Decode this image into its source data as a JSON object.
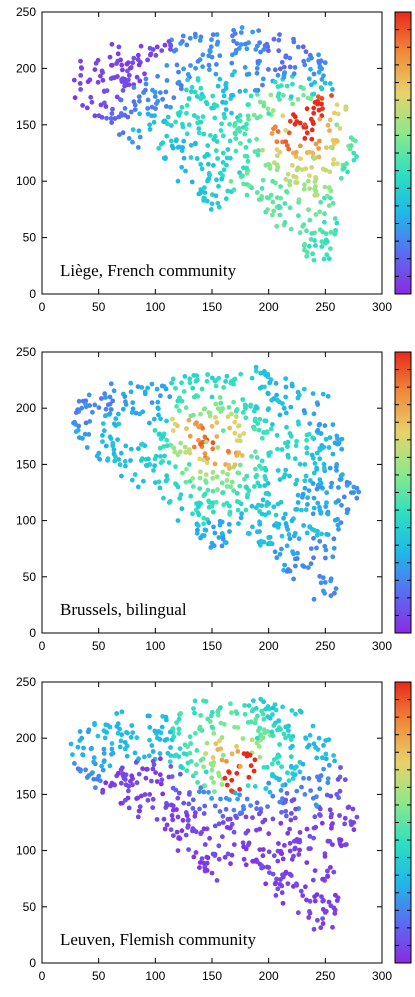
{
  "colors": {
    "colormap": [
      "#8a2be2",
      "#5b6cf2",
      "#1fb8e8",
      "#2ee0c0",
      "#8ee88a",
      "#e8d26a",
      "#f08a3a",
      "#e82a1a"
    ],
    "axis": "#000000",
    "background": "#ffffff"
  },
  "chart_data": [
    {
      "type": "scatter",
      "title": "Liège, French community",
      "xlim": [
        0,
        300
      ],
      "ylim": [
        0,
        250
      ],
      "x_ticks": [
        "0",
        "50",
        "100",
        "150",
        "200",
        "250",
        "300"
      ],
      "y_ticks": [
        "0",
        "50",
        "100",
        "150",
        "200",
        "250"
      ],
      "colorbar": true,
      "grid": false,
      "hotspot": [
        232,
        150
      ],
      "points": [
        [
          35,
          200,
          0.05
        ],
        [
          60,
          210,
          0.05
        ],
        [
          80,
          205,
          0.05
        ],
        [
          55,
          180,
          0.08
        ],
        [
          40,
          165,
          0.05
        ],
        [
          70,
          160,
          0.15
        ],
        [
          95,
          150,
          0.3
        ],
        [
          110,
          140,
          0.35
        ],
        [
          130,
          150,
          0.4
        ],
        [
          145,
          170,
          0.4
        ],
        [
          160,
          180,
          0.3
        ],
        [
          150,
          210,
          0.2
        ],
        [
          190,
          200,
          0.2
        ],
        [
          215,
          210,
          0.15
        ],
        [
          240,
          195,
          0.2
        ],
        [
          220,
          175,
          0.35
        ],
        [
          200,
          160,
          0.45
        ],
        [
          215,
          145,
          0.7
        ],
        [
          232,
          150,
          0.95
        ],
        [
          245,
          155,
          0.8
        ],
        [
          260,
          150,
          0.55
        ],
        [
          275,
          125,
          0.45
        ],
        [
          255,
          130,
          0.6
        ],
        [
          240,
          120,
          0.6
        ],
        [
          225,
          110,
          0.6
        ],
        [
          200,
          115,
          0.55
        ],
        [
          180,
          130,
          0.45
        ],
        [
          160,
          125,
          0.4
        ],
        [
          140,
          115,
          0.35
        ],
        [
          120,
          100,
          0.3
        ],
        [
          150,
          80,
          0.35
        ],
        [
          190,
          90,
          0.5
        ],
        [
          210,
          70,
          0.5
        ],
        [
          230,
          60,
          0.5
        ],
        [
          250,
          45,
          0.45
        ],
        [
          240,
          30,
          0.45
        ],
        [
          200,
          85,
          0.5
        ],
        [
          120,
          130,
          0.3
        ],
        [
          85,
          130,
          0.2
        ],
        [
          100,
          175,
          0.2
        ]
      ]
    },
    {
      "type": "scatter",
      "title": "Brussels, bilingual",
      "xlim": [
        0,
        300
      ],
      "ylim": [
        0,
        250
      ],
      "x_ticks": [
        "0",
        "50",
        "100",
        "150",
        "200",
        "250",
        "300"
      ],
      "y_ticks": [
        "0",
        "50",
        "100",
        "150",
        "200",
        "250"
      ],
      "colorbar": true,
      "grid": false,
      "hotspot": [
        150,
        170
      ],
      "points": [
        [
          35,
          200,
          0.2
        ],
        [
          60,
          210,
          0.2
        ],
        [
          80,
          205,
          0.25
        ],
        [
          55,
          180,
          0.3
        ],
        [
          40,
          165,
          0.25
        ],
        [
          70,
          160,
          0.3
        ],
        [
          95,
          150,
          0.35
        ],
        [
          110,
          140,
          0.35
        ],
        [
          130,
          150,
          0.45
        ],
        [
          145,
          170,
          0.6
        ],
        [
          155,
          165,
          0.6
        ],
        [
          160,
          180,
          0.5
        ],
        [
          150,
          210,
          0.4
        ],
        [
          190,
          200,
          0.35
        ],
        [
          215,
          210,
          0.3
        ],
        [
          240,
          195,
          0.25
        ],
        [
          220,
          175,
          0.4
        ],
        [
          200,
          160,
          0.4
        ],
        [
          215,
          145,
          0.35
        ],
        [
          232,
          150,
          0.35
        ],
        [
          245,
          155,
          0.3
        ],
        [
          260,
          150,
          0.25
        ],
        [
          275,
          125,
          0.2
        ],
        [
          255,
          130,
          0.25
        ],
        [
          240,
          120,
          0.25
        ],
        [
          225,
          110,
          0.3
        ],
        [
          200,
          115,
          0.35
        ],
        [
          180,
          130,
          0.4
        ],
        [
          160,
          125,
          0.45
        ],
        [
          140,
          115,
          0.4
        ],
        [
          120,
          100,
          0.3
        ],
        [
          150,
          80,
          0.25
        ],
        [
          190,
          90,
          0.3
        ],
        [
          210,
          70,
          0.25
        ],
        [
          230,
          60,
          0.2
        ],
        [
          250,
          45,
          0.2
        ],
        [
          240,
          30,
          0.2
        ],
        [
          200,
          85,
          0.3
        ],
        [
          120,
          130,
          0.4
        ],
        [
          85,
          130,
          0.3
        ]
      ]
    },
    {
      "type": "scatter",
      "title": "Leuven, Flemish community",
      "xlim": [
        0,
        300
      ],
      "ylim": [
        0,
        250
      ],
      "x_ticks": [
        "0",
        "50",
        "100",
        "150",
        "200",
        "250",
        "300"
      ],
      "y_ticks": [
        "0",
        "50",
        "100",
        "150",
        "200",
        "250"
      ],
      "colorbar": true,
      "grid": false,
      "hotspot": [
        175,
        175
      ],
      "points": [
        [
          35,
          200,
          0.25
        ],
        [
          60,
          210,
          0.3
        ],
        [
          80,
          205,
          0.3
        ],
        [
          55,
          180,
          0.25
        ],
        [
          40,
          165,
          0.2
        ],
        [
          70,
          160,
          0.05
        ],
        [
          95,
          150,
          0.05
        ],
        [
          110,
          140,
          0.05
        ],
        [
          130,
          150,
          0.1
        ],
        [
          145,
          170,
          0.4
        ],
        [
          160,
          185,
          0.55
        ],
        [
          175,
          175,
          0.8
        ],
        [
          150,
          210,
          0.45
        ],
        [
          190,
          200,
          0.4
        ],
        [
          215,
          210,
          0.35
        ],
        [
          240,
          195,
          0.3
        ],
        [
          220,
          175,
          0.3
        ],
        [
          200,
          160,
          0.2
        ],
        [
          215,
          145,
          0.1
        ],
        [
          232,
          150,
          0.2
        ],
        [
          245,
          155,
          0.2
        ],
        [
          260,
          150,
          0.1
        ],
        [
          275,
          125,
          0.05
        ],
        [
          255,
          130,
          0.05
        ],
        [
          240,
          120,
          0.05
        ],
        [
          225,
          110,
          0.05
        ],
        [
          200,
          115,
          0.05
        ],
        [
          180,
          130,
          0.05
        ],
        [
          160,
          125,
          0.05
        ],
        [
          140,
          115,
          0.05
        ],
        [
          120,
          100,
          0.05
        ],
        [
          150,
          80,
          0.05
        ],
        [
          190,
          90,
          0.05
        ],
        [
          210,
          70,
          0.05
        ],
        [
          230,
          60,
          0.05
        ],
        [
          250,
          45,
          0.05
        ],
        [
          240,
          30,
          0.05
        ],
        [
          200,
          85,
          0.05
        ],
        [
          120,
          130,
          0.05
        ],
        [
          85,
          130,
          0.05
        ]
      ]
    }
  ]
}
